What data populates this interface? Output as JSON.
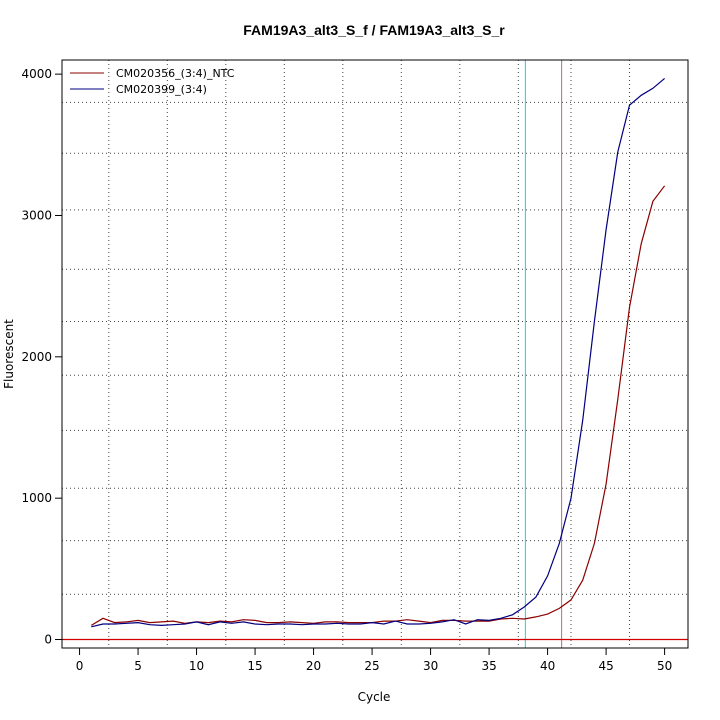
{
  "chart_data": {
    "type": "line",
    "title": "FAM19A3_alt3_S_f / FAM19A3_alt3_S_r",
    "xlabel": "Cycle",
    "ylabel": "Fluorescent",
    "xlim": [
      -1.5,
      52
    ],
    "ylim": [
      -60,
      4100
    ],
    "x_ticks": [
      0,
      5,
      10,
      15,
      20,
      25,
      30,
      35,
      40,
      45,
      50
    ],
    "y_ticks": [
      0,
      1000,
      2000,
      3000,
      4000
    ],
    "grid": true,
    "grid_x": [
      2.5,
      7.5,
      12.5,
      17.5,
      22.5,
      27.5,
      32.5,
      37.5,
      42,
      47
    ],
    "grid_y": [
      320,
      700,
      1070,
      1480,
      1870,
      2250,
      2620,
      3040,
      3440,
      3800
    ],
    "legend_position": "top-left",
    "x": [
      1,
      2,
      3,
      4,
      5,
      6,
      7,
      8,
      9,
      10,
      11,
      12,
      13,
      14,
      15,
      16,
      17,
      18,
      19,
      20,
      21,
      22,
      23,
      24,
      25,
      26,
      27,
      28,
      29,
      30,
      31,
      32,
      33,
      34,
      35,
      36,
      37,
      38,
      39,
      40,
      41,
      42,
      43,
      44,
      45,
      46,
      47,
      48,
      49,
      50
    ],
    "series": [
      {
        "name": "CM020356_(3:4)_NTC",
        "color": "#8b0000",
        "values": [
          100,
          150,
          120,
          125,
          135,
          120,
          125,
          130,
          115,
          125,
          120,
          130,
          125,
          140,
          135,
          120,
          120,
          125,
          120,
          115,
          125,
          125,
          120,
          120,
          120,
          130,
          130,
          140,
          130,
          120,
          135,
          135,
          130,
          130,
          130,
          145,
          150,
          145,
          160,
          180,
          220,
          280,
          420,
          680,
          1100,
          1700,
          2350,
          2800,
          3100,
          3210
        ]
      },
      {
        "name": "CM020399_(3:4)",
        "color": "#000080",
        "values": [
          90,
          110,
          110,
          115,
          120,
          105,
          100,
          105,
          110,
          125,
          105,
          125,
          115,
          125,
          110,
          105,
          110,
          110,
          105,
          110,
          110,
          115,
          110,
          110,
          120,
          110,
          130,
          110,
          110,
          115,
          125,
          140,
          110,
          140,
          135,
          150,
          175,
          230,
          300,
          450,
          680,
          1000,
          1550,
          2250,
          2900,
          3450,
          3780,
          3850,
          3900,
          3970
        ]
      }
    ],
    "threshold_line": {
      "y": 0,
      "color": "#d00000"
    },
    "vertical_markers": [
      {
        "x": 38.1,
        "color": "#00d8ff"
      },
      {
        "x": 41.2,
        "color": "#b07080"
      }
    ]
  }
}
